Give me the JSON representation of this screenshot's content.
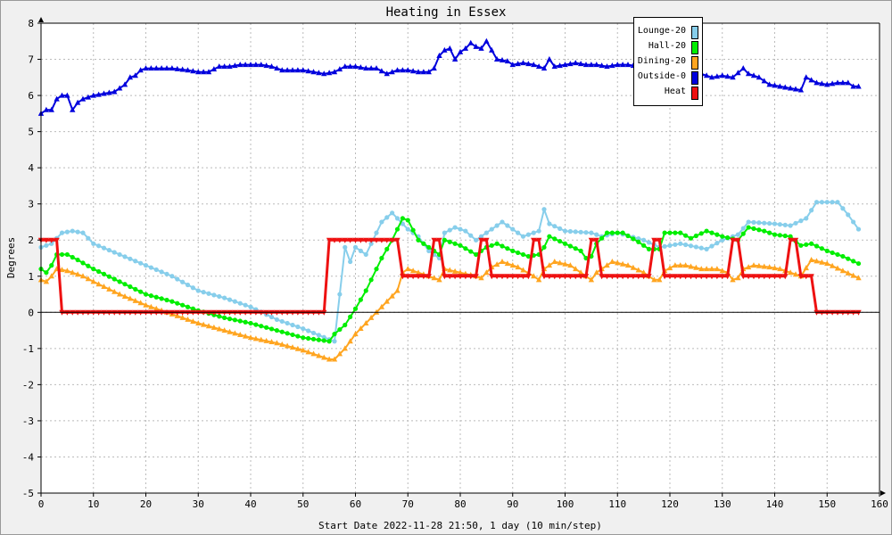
{
  "chart_data": {
    "type": "line",
    "title": "Heating in Essex",
    "xlabel": "Start Date 2022-11-28 21:50, 1 day (10 min/step)",
    "ylabel": "Degrees",
    "xlim": [
      0,
      160
    ],
    "ylim": [
      -5,
      8
    ],
    "x_ticks": [
      0,
      10,
      20,
      30,
      40,
      50,
      60,
      70,
      80,
      90,
      100,
      110,
      120,
      130,
      140,
      150,
      160
    ],
    "y_ticks": [
      -5,
      -4,
      -3,
      -2,
      -1,
      0,
      1,
      2,
      3,
      4,
      5,
      6,
      7,
      8
    ],
    "grid": true,
    "legend_position": "top-right",
    "series": [
      {
        "name": "Lounge-20",
        "color": "#87ceeb",
        "marker": "circle",
        "points": [
          [
            0,
            1.8
          ],
          [
            2,
            1.9
          ],
          [
            4,
            2.2
          ],
          [
            6,
            2.25
          ],
          [
            8,
            2.2
          ],
          [
            10,
            1.9
          ],
          [
            15,
            1.6
          ],
          [
            20,
            1.3
          ],
          [
            25,
            1.0
          ],
          [
            30,
            0.6
          ],
          [
            35,
            0.4
          ],
          [
            40,
            0.15
          ],
          [
            45,
            -0.2
          ],
          [
            50,
            -0.45
          ],
          [
            55,
            -0.75
          ],
          [
            56,
            -0.8
          ],
          [
            58,
            1.8
          ],
          [
            59,
            1.4
          ],
          [
            60,
            1.8
          ],
          [
            62,
            1.6
          ],
          [
            65,
            2.5
          ],
          [
            67,
            2.75
          ],
          [
            70,
            2.3
          ],
          [
            72,
            2.1
          ],
          [
            74,
            1.7
          ],
          [
            76,
            1.5
          ],
          [
            77,
            2.2
          ],
          [
            79,
            2.35
          ],
          [
            81,
            2.25
          ],
          [
            83,
            2.0
          ],
          [
            85,
            2.2
          ],
          [
            88,
            2.5
          ],
          [
            92,
            2.1
          ],
          [
            95,
            2.25
          ],
          [
            96,
            2.85
          ],
          [
            97,
            2.45
          ],
          [
            100,
            2.25
          ],
          [
            105,
            2.2
          ],
          [
            107,
            2.1
          ],
          [
            110,
            2.2
          ],
          [
            115,
            2.0
          ],
          [
            118,
            1.8
          ],
          [
            122,
            1.9
          ],
          [
            127,
            1.75
          ],
          [
            130,
            2.0
          ],
          [
            133,
            2.15
          ],
          [
            135,
            2.5
          ],
          [
            140,
            2.45
          ],
          [
            143,
            2.4
          ],
          [
            146,
            2.6
          ],
          [
            148,
            3.05
          ],
          [
            152,
            3.05
          ],
          [
            154,
            2.7
          ],
          [
            156,
            2.3
          ]
        ]
      },
      {
        "name": "Hall-20",
        "color": "#00ee00",
        "marker": "circle",
        "points": [
          [
            0,
            1.2
          ],
          [
            1,
            1.1
          ],
          [
            2,
            1.3
          ],
          [
            3,
            1.6
          ],
          [
            5,
            1.6
          ],
          [
            7,
            1.45
          ],
          [
            10,
            1.2
          ],
          [
            15,
            0.85
          ],
          [
            20,
            0.5
          ],
          [
            25,
            0.3
          ],
          [
            30,
            0.05
          ],
          [
            35,
            -0.15
          ],
          [
            40,
            -0.3
          ],
          [
            45,
            -0.5
          ],
          [
            50,
            -0.7
          ],
          [
            55,
            -0.8
          ],
          [
            56,
            -0.6
          ],
          [
            58,
            -0.35
          ],
          [
            60,
            0.1
          ],
          [
            62,
            0.6
          ],
          [
            65,
            1.5
          ],
          [
            67,
            2.0
          ],
          [
            69,
            2.6
          ],
          [
            70,
            2.55
          ],
          [
            72,
            2.0
          ],
          [
            74,
            1.8
          ],
          [
            76,
            1.6
          ],
          [
            77,
            2.0
          ],
          [
            80,
            1.85
          ],
          [
            83,
            1.6
          ],
          [
            85,
            1.8
          ],
          [
            87,
            1.9
          ],
          [
            90,
            1.7
          ],
          [
            93,
            1.55
          ],
          [
            95,
            1.6
          ],
          [
            96,
            1.8
          ],
          [
            97,
            2.1
          ],
          [
            100,
            1.9
          ],
          [
            103,
            1.7
          ],
          [
            104,
            1.5
          ],
          [
            105,
            1.55
          ],
          [
            106,
            1.9
          ],
          [
            108,
            2.2
          ],
          [
            111,
            2.2
          ],
          [
            114,
            1.95
          ],
          [
            116,
            1.75
          ],
          [
            118,
            1.75
          ],
          [
            119,
            2.2
          ],
          [
            122,
            2.2
          ],
          [
            124,
            2.05
          ],
          [
            127,
            2.25
          ],
          [
            130,
            2.1
          ],
          [
            133,
            2.0
          ],
          [
            135,
            2.35
          ],
          [
            138,
            2.25
          ],
          [
            140,
            2.15
          ],
          [
            143,
            2.1
          ],
          [
            145,
            1.85
          ],
          [
            147,
            1.9
          ],
          [
            150,
            1.7
          ],
          [
            153,
            1.55
          ],
          [
            156,
            1.35
          ]
        ]
      },
      {
        "name": "Dining-20",
        "color": "#ffa520",
        "marker": "triangle",
        "points": [
          [
            0,
            0.9
          ],
          [
            1,
            0.85
          ],
          [
            2,
            1.0
          ],
          [
            3,
            1.2
          ],
          [
            5,
            1.15
          ],
          [
            8,
            1.0
          ],
          [
            10,
            0.85
          ],
          [
            15,
            0.5
          ],
          [
            20,
            0.2
          ],
          [
            25,
            -0.05
          ],
          [
            30,
            -0.3
          ],
          [
            35,
            -0.5
          ],
          [
            40,
            -0.7
          ],
          [
            45,
            -0.85
          ],
          [
            50,
            -1.05
          ],
          [
            55,
            -1.3
          ],
          [
            56,
            -1.3
          ],
          [
            58,
            -1.0
          ],
          [
            60,
            -0.6
          ],
          [
            63,
            -0.15
          ],
          [
            66,
            0.3
          ],
          [
            68,
            0.6
          ],
          [
            69,
            1.1
          ],
          [
            70,
            1.2
          ],
          [
            72,
            1.1
          ],
          [
            74,
            1.0
          ],
          [
            76,
            0.9
          ],
          [
            77,
            1.2
          ],
          [
            80,
            1.1
          ],
          [
            83,
            1.0
          ],
          [
            84,
            0.95
          ],
          [
            86,
            1.25
          ],
          [
            88,
            1.4
          ],
          [
            91,
            1.25
          ],
          [
            94,
            1.0
          ],
          [
            95,
            0.9
          ],
          [
            96,
            1.2
          ],
          [
            98,
            1.4
          ],
          [
            101,
            1.3
          ],
          [
            104,
            1.0
          ],
          [
            105,
            0.9
          ],
          [
            106,
            1.1
          ],
          [
            109,
            1.4
          ],
          [
            112,
            1.3
          ],
          [
            115,
            1.1
          ],
          [
            117,
            0.9
          ],
          [
            118,
            0.9
          ],
          [
            119,
            1.15
          ],
          [
            121,
            1.3
          ],
          [
            123,
            1.3
          ],
          [
            126,
            1.2
          ],
          [
            129,
            1.2
          ],
          [
            131,
            1.1
          ],
          [
            132,
            0.9
          ],
          [
            133,
            0.95
          ],
          [
            134,
            1.2
          ],
          [
            136,
            1.3
          ],
          [
            139,
            1.25
          ],
          [
            141,
            1.2
          ],
          [
            143,
            1.1
          ],
          [
            145,
            1.0
          ],
          [
            147,
            1.45
          ],
          [
            150,
            1.35
          ],
          [
            153,
            1.15
          ],
          [
            156,
            0.95
          ]
        ]
      },
      {
        "name": "Outside-0",
        "color": "#0000dd",
        "marker": "triangle",
        "points": [
          [
            0,
            5.5
          ],
          [
            1,
            5.6
          ],
          [
            2,
            5.6
          ],
          [
            3,
            5.9
          ],
          [
            4,
            6.0
          ],
          [
            5,
            6.0
          ],
          [
            6,
            5.6
          ],
          [
            7,
            5.8
          ],
          [
            8,
            5.9
          ],
          [
            10,
            6.0
          ],
          [
            12,
            6.05
          ],
          [
            14,
            6.1
          ],
          [
            16,
            6.3
          ],
          [
            17,
            6.5
          ],
          [
            18,
            6.55
          ],
          [
            19,
            6.7
          ],
          [
            20,
            6.75
          ],
          [
            22,
            6.75
          ],
          [
            25,
            6.75
          ],
          [
            28,
            6.7
          ],
          [
            30,
            6.65
          ],
          [
            32,
            6.65
          ],
          [
            34,
            6.8
          ],
          [
            36,
            6.8
          ],
          [
            38,
            6.85
          ],
          [
            40,
            6.85
          ],
          [
            42,
            6.85
          ],
          [
            44,
            6.8
          ],
          [
            46,
            6.7
          ],
          [
            48,
            6.7
          ],
          [
            50,
            6.7
          ],
          [
            52,
            6.65
          ],
          [
            54,
            6.6
          ],
          [
            56,
            6.65
          ],
          [
            58,
            6.8
          ],
          [
            60,
            6.8
          ],
          [
            62,
            6.75
          ],
          [
            64,
            6.75
          ],
          [
            66,
            6.6
          ],
          [
            68,
            6.7
          ],
          [
            70,
            6.7
          ],
          [
            72,
            6.65
          ],
          [
            74,
            6.65
          ],
          [
            75,
            6.75
          ],
          [
            76,
            7.1
          ],
          [
            77,
            7.25
          ],
          [
            78,
            7.3
          ],
          [
            79,
            7.0
          ],
          [
            80,
            7.2
          ],
          [
            81,
            7.3
          ],
          [
            82,
            7.45
          ],
          [
            83,
            7.35
          ],
          [
            84,
            7.3
          ],
          [
            85,
            7.5
          ],
          [
            86,
            7.25
          ],
          [
            87,
            7.0
          ],
          [
            89,
            6.95
          ],
          [
            90,
            6.85
          ],
          [
            92,
            6.9
          ],
          [
            94,
            6.85
          ],
          [
            96,
            6.75
          ],
          [
            97,
            7.0
          ],
          [
            98,
            6.8
          ],
          [
            100,
            6.85
          ],
          [
            102,
            6.9
          ],
          [
            104,
            6.85
          ],
          [
            106,
            6.85
          ],
          [
            108,
            6.8
          ],
          [
            110,
            6.85
          ],
          [
            112,
            6.85
          ],
          [
            114,
            6.8
          ],
          [
            116,
            6.75
          ],
          [
            118,
            6.7
          ],
          [
            120,
            6.75
          ],
          [
            122,
            6.65
          ],
          [
            124,
            6.7
          ],
          [
            126,
            6.6
          ],
          [
            128,
            6.5
          ],
          [
            130,
            6.55
          ],
          [
            132,
            6.5
          ],
          [
            134,
            6.75
          ],
          [
            135,
            6.6
          ],
          [
            137,
            6.5
          ],
          [
            139,
            6.3
          ],
          [
            141,
            6.25
          ],
          [
            143,
            6.2
          ],
          [
            145,
            6.15
          ],
          [
            146,
            6.5
          ],
          [
            148,
            6.35
          ],
          [
            150,
            6.3
          ],
          [
            152,
            6.35
          ],
          [
            154,
            6.35
          ],
          [
            155,
            6.25
          ],
          [
            156,
            6.25
          ]
        ]
      },
      {
        "name": "Heat",
        "color": "#ee1111",
        "marker": "triangle-down",
        "points": [
          [
            0,
            2
          ],
          [
            3,
            2
          ],
          [
            4,
            0
          ],
          [
            54,
            0
          ],
          [
            55,
            2
          ],
          [
            68,
            2
          ],
          [
            69,
            1
          ],
          [
            74,
            1
          ],
          [
            75,
            2
          ],
          [
            76,
            2
          ],
          [
            77,
            1
          ],
          [
            83,
            1
          ],
          [
            84,
            2
          ],
          [
            85,
            2
          ],
          [
            86,
            1
          ],
          [
            93,
            1
          ],
          [
            94,
            2
          ],
          [
            95,
            2
          ],
          [
            96,
            1
          ],
          [
            104,
            1
          ],
          [
            105,
            2
          ],
          [
            106,
            2
          ],
          [
            107,
            1
          ],
          [
            116,
            1
          ],
          [
            117,
            2
          ],
          [
            118,
            2
          ],
          [
            119,
            1
          ],
          [
            131,
            1
          ],
          [
            132,
            2
          ],
          [
            133,
            2
          ],
          [
            134,
            1
          ],
          [
            142,
            1
          ],
          [
            143,
            2
          ],
          [
            144,
            2
          ],
          [
            145,
            1
          ],
          [
            147,
            1
          ],
          [
            148,
            0
          ],
          [
            156,
            0
          ]
        ]
      }
    ]
  }
}
